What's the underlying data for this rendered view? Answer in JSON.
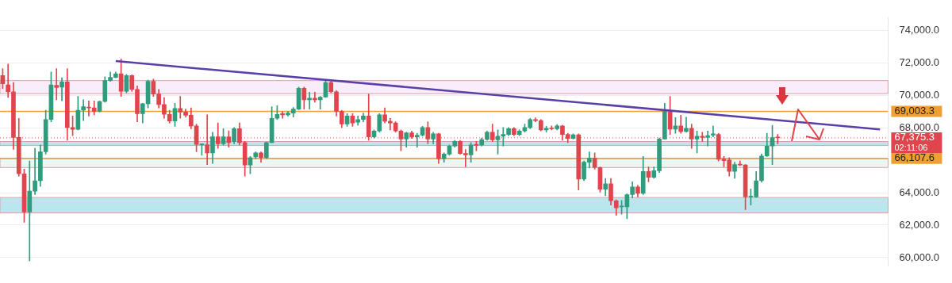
{
  "chart_data": {
    "type": "candlestick",
    "categories": [
      null,
      null,
      null,
      null,
      null,
      null,
      null,
      null,
      null,
      null,
      null,
      null,
      null,
      null,
      null,
      null,
      null,
      null,
      null,
      null,
      null,
      null,
      null,
      null,
      null,
      null,
      null,
      null,
      null,
      null,
      null,
      null,
      null,
      null,
      null,
      null,
      null,
      null,
      null,
      null,
      null,
      null,
      null,
      null,
      null,
      null,
      null,
      null,
      null,
      null,
      null,
      null,
      null,
      null,
      null,
      null,
      null,
      null,
      null,
      null,
      null,
      null,
      null,
      null,
      null,
      null,
      null,
      null,
      null,
      null,
      null,
      null,
      null,
      null,
      null,
      null,
      null,
      null,
      null,
      null,
      null,
      null,
      null,
      null,
      null,
      null,
      null,
      null,
      null,
      null,
      null,
      null,
      null,
      null,
      null,
      null,
      null,
      null,
      null,
      null,
      null,
      null,
      null,
      null,
      null,
      null,
      null,
      null,
      null,
      null,
      null,
      null,
      null,
      null,
      null,
      null,
      null,
      null,
      null,
      null,
      null,
      null,
      null,
      null,
      null,
      null,
      null,
      null,
      null,
      null,
      null,
      null,
      null,
      null,
      null,
      null,
      null,
      null,
      null,
      null,
      null,
      null,
      null,
      null,
      null,
      null,
      null,
      null,
      null,
      null,
      null,
      null,
      null,
      null,
      null,
      null,
      null,
      null,
      null,
      null,
      null,
      null,
      null,
      null,
      null
    ],
    "ohlc": [
      [
        71210,
        71640,
        70400,
        70710
      ],
      [
        70640,
        71920,
        69860,
        70215
      ],
      [
        70215,
        70780,
        66660,
        67400
      ],
      [
        67400,
        68580,
        65000,
        65160
      ],
      [
        65160,
        65450,
        62175,
        62815
      ],
      [
        62815,
        65950,
        59800,
        64095
      ],
      [
        64095,
        66730,
        63880,
        64735
      ],
      [
        64735,
        66940,
        64380,
        66515
      ],
      [
        66515,
        69080,
        66370,
        68505
      ],
      [
        68505,
        71425,
        68365,
        70640
      ],
      [
        70610,
        71640,
        69720,
        70470
      ],
      [
        70500,
        71070,
        69650,
        70825
      ],
      [
        70825,
        71640,
        67225,
        68010
      ],
      [
        68010,
        68720,
        67510,
        67895
      ],
      [
        67895,
        69930,
        67865,
        69080
      ],
      [
        69080,
        69720,
        68435,
        69290
      ],
      [
        69275,
        69645,
        68720,
        69220
      ],
      [
        69220,
        69645,
        68790,
        69005
      ],
      [
        69005,
        69645,
        68965,
        69615
      ],
      [
        69615,
        71140,
        69575,
        70900
      ],
      [
        70900,
        71425,
        70855,
        71100
      ],
      [
        71100,
        71425,
        71070,
        71325
      ],
      [
        71325,
        72235,
        69930,
        70245
      ],
      [
        70245,
        71280,
        70145,
        71210
      ],
      [
        71210,
        71255,
        70245,
        70360
      ],
      [
        70360,
        70570,
        68365,
        68865
      ],
      [
        68865,
        69505,
        68295,
        69475
      ],
      [
        69475,
        70925,
        69220,
        70855
      ],
      [
        70855,
        70995,
        69930,
        70070
      ],
      [
        70070,
        70355,
        69220,
        69430
      ],
      [
        69430,
        69860,
        68580,
        68820
      ],
      [
        68820,
        69075,
        68295,
        68410
      ],
      [
        68410,
        69505,
        68080,
        69190
      ],
      [
        69190,
        69930,
        68580,
        68960
      ],
      [
        68960,
        69145,
        68650,
        68765
      ],
      [
        68765,
        69220,
        67940,
        68110
      ],
      [
        68110,
        68220,
        66515,
        66970
      ],
      [
        66945,
        67015,
        66300,
        66970
      ],
      [
        66945,
        68790,
        65730,
        66445
      ],
      [
        66445,
        67725,
        65805,
        67440
      ],
      [
        67440,
        68295,
        66730,
        67010
      ],
      [
        67010,
        67935,
        66940,
        67440
      ],
      [
        67440,
        67800,
        66800,
        67085
      ],
      [
        67155,
        68010,
        67010,
        67940
      ],
      [
        67940,
        68295,
        66940,
        67085
      ],
      [
        67085,
        67155,
        65020,
        65705
      ],
      [
        65705,
        66230,
        65165,
        66160
      ],
      [
        66200,
        66515,
        66090,
        66445
      ],
      [
        66445,
        66515,
        65875,
        66160
      ],
      [
        66160,
        67115,
        66090,
        67085
      ],
      [
        67085,
        69290,
        67085,
        68580
      ],
      [
        68580,
        69360,
        68505,
        68820
      ],
      [
        68865,
        69005,
        68580,
        68790
      ],
      [
        68790,
        69005,
        68720,
        68905
      ],
      [
        68905,
        69245,
        68650,
        69145
      ],
      [
        69145,
        70500,
        69105,
        70430
      ],
      [
        70430,
        70500,
        69145,
        69715
      ],
      [
        69715,
        70185,
        69145,
        69815
      ],
      [
        69815,
        70185,
        69575,
        69715
      ],
      [
        69715,
        69930,
        69145,
        69885
      ],
      [
        69885,
        70925,
        69860,
        70785
      ],
      [
        70785,
        70855,
        70145,
        70215
      ],
      [
        70215,
        70285,
        68720,
        69005
      ],
      [
        69005,
        69075,
        68010,
        68225
      ],
      [
        68225,
        68865,
        68080,
        68720
      ],
      [
        68720,
        68865,
        68080,
        68295
      ],
      [
        68335,
        68720,
        68150,
        68505
      ],
      [
        68505,
        68905,
        68365,
        68720
      ],
      [
        68720,
        70070,
        67225,
        67440
      ],
      [
        67440,
        67865,
        67370,
        67795
      ],
      [
        67795,
        68865,
        67725,
        68790
      ],
      [
        68790,
        69220,
        68295,
        68395
      ],
      [
        68395,
        68580,
        67865,
        68295
      ],
      [
        68295,
        68365,
        67725,
        67795
      ],
      [
        67795,
        67865,
        66585,
        67295
      ],
      [
        67295,
        67725,
        66800,
        67680
      ],
      [
        67680,
        67795,
        67340,
        67440
      ],
      [
        67440,
        67655,
        66800,
        67540
      ],
      [
        67540,
        68080,
        67480,
        68010
      ],
      [
        68010,
        68365,
        67010,
        67295
      ],
      [
        67295,
        67725,
        67010,
        67625
      ],
      [
        67625,
        67655,
        65805,
        66090
      ],
      [
        66090,
        66445,
        65875,
        66375
      ],
      [
        66375,
        66940,
        66300,
        66870
      ],
      [
        66870,
        67225,
        66800,
        67155
      ],
      [
        67155,
        67225,
        66375,
        66415
      ],
      [
        66415,
        66660,
        65590,
        66330
      ],
      [
        66330,
        67085,
        65875,
        66940
      ],
      [
        66970,
        67155,
        66585,
        66915
      ],
      [
        66940,
        67370,
        66870,
        67270
      ],
      [
        67270,
        67795,
        67225,
        67725
      ],
      [
        67725,
        68220,
        67155,
        67255
      ],
      [
        67255,
        67865,
        66375,
        67480
      ],
      [
        67480,
        68010,
        66870,
        67580
      ],
      [
        67580,
        68010,
        67510,
        67940
      ],
      [
        67940,
        68010,
        67510,
        67580
      ],
      [
        67580,
        67865,
        67510,
        67795
      ],
      [
        67795,
        68220,
        67725,
        68010
      ],
      [
        68010,
        68580,
        67940,
        68505
      ],
      [
        68505,
        68605,
        68365,
        68435
      ],
      [
        68435,
        68505,
        67795,
        67865
      ],
      [
        67865,
        68080,
        67725,
        67965
      ],
      [
        67965,
        68110,
        67865,
        67940
      ],
      [
        67940,
        68195,
        67865,
        68110
      ],
      [
        68110,
        68150,
        67225,
        67580
      ],
      [
        67580,
        67655,
        67085,
        67340
      ],
      [
        67340,
        67625,
        67295,
        67555
      ],
      [
        67555,
        67625,
        64165,
        64835
      ],
      [
        64835,
        65945,
        64735,
        65875
      ],
      [
        65875,
        66515,
        65520,
        66115
      ],
      [
        66115,
        66445,
        65450,
        65550
      ],
      [
        65550,
        65590,
        64025,
        64210
      ],
      [
        64210,
        64880,
        63810,
        64550
      ],
      [
        64550,
        64880,
        63240,
        63500
      ],
      [
        63500,
        63555,
        62600,
        63070
      ],
      [
        63130,
        63525,
        62670,
        63170
      ],
      [
        63130,
        63925,
        62390,
        63880
      ],
      [
        63880,
        64665,
        63670,
        64350
      ],
      [
        64350,
        64450,
        63740,
        63955
      ],
      [
        63955,
        66230,
        63880,
        65305
      ],
      [
        65305,
        65590,
        64665,
        64950
      ],
      [
        64950,
        65590,
        64880,
        65350
      ],
      [
        65350,
        67370,
        65235,
        67300
      ],
      [
        67300,
        69505,
        67300,
        69005
      ],
      [
        68965,
        69930,
        67580,
        67910
      ],
      [
        67910,
        68620,
        67655,
        68110
      ],
      [
        68110,
        68765,
        67655,
        67765
      ],
      [
        67765,
        68650,
        67725,
        67965
      ],
      [
        67965,
        68225,
        66730,
        67300
      ],
      [
        67300,
        67795,
        66445,
        67480
      ],
      [
        67480,
        67725,
        67155,
        67395
      ],
      [
        67395,
        67795,
        66870,
        67510
      ],
      [
        67540,
        68110,
        67440,
        67625
      ],
      [
        67580,
        67655,
        65945,
        66060
      ],
      [
        66060,
        66230,
        65590,
        65975
      ],
      [
        66015,
        66160,
        65020,
        65305
      ],
      [
        65305,
        65875,
        64880,
        65735
      ],
      [
        65760,
        65945,
        65660,
        65705
      ],
      [
        65705,
        65735,
        62960,
        63740
      ],
      [
        63740,
        64235,
        63240,
        63780
      ],
      [
        63740,
        65305,
        63700,
        64735
      ],
      [
        64735,
        66375,
        64635,
        66260
      ],
      [
        66260,
        67655,
        66230,
        66870
      ],
      [
        66870,
        68150,
        65730,
        67395
      ],
      [
        67395,
        67580,
        67010,
        67375
      ],
      null,
      null,
      null,
      null,
      null,
      null,
      null,
      null,
      null,
      null,
      null,
      null,
      null,
      null,
      null,
      null,
      null,
      null,
      null,
      null
    ],
    "series": [
      {
        "type": "line",
        "color": "#5b3fa8",
        "values": [
          null,
          null,
          null,
          null,
          null,
          null,
          null,
          null,
          null,
          null,
          null,
          null,
          null,
          null,
          null,
          null,
          null,
          null,
          null,
          null,
          null,
          72100,
          null,
          null,
          null,
          null,
          null,
          null,
          null,
          null,
          null,
          null,
          null,
          null,
          null,
          null,
          null,
          null,
          null,
          null,
          null,
          null,
          null,
          null,
          null,
          null,
          null,
          null,
          null,
          null,
          null,
          null,
          null,
          null,
          null,
          null,
          null,
          null,
          null,
          null,
          null,
          null,
          null,
          null,
          null,
          null,
          null,
          null,
          null,
          null,
          null,
          null,
          null,
          null,
          null,
          null,
          null,
          null,
          null,
          null,
          null,
          null,
          null,
          null,
          null,
          null,
          null,
          null,
          null,
          null,
          null,
          null,
          null,
          null,
          null,
          null,
          null,
          null,
          null,
          null,
          null,
          null,
          null,
          null,
          null,
          null,
          null,
          null,
          null,
          null,
          null,
          null,
          null,
          null,
          null,
          null,
          null,
          null,
          null,
          null,
          null,
          null,
          null,
          null,
          null,
          null,
          null,
          null,
          null,
          null,
          null,
          null,
          null,
          null,
          null,
          null,
          null,
          null,
          null,
          null,
          null,
          null,
          null,
          null,
          null,
          null,
          null,
          null,
          null,
          null,
          null,
          null,
          null,
          null,
          null,
          null,
          null,
          null,
          null,
          null,
          null,
          null,
          null,
          67900,
          null
        ]
      }
    ],
    "ylim": [
      59500,
      74800
    ],
    "yticks": [
      {
        "value": 60000,
        "label": "60,000.0"
      },
      {
        "value": 62000,
        "label": "62,000.0"
      },
      {
        "value": 64000,
        "label": "64,000.0"
      },
      {
        "value": 68000,
        "label": "68,000.0"
      },
      {
        "value": 70000,
        "label": "70,000.0"
      },
      {
        "value": 72000,
        "label": "72,000.0"
      },
      {
        "value": 74000,
        "label": "74,000.0"
      }
    ],
    "ref_lines": [
      {
        "axis": "y",
        "value": 69003.3,
        "label": "69,003.3",
        "color": "#f0a030",
        "line_style": "solid"
      },
      {
        "axis": "y",
        "value": 66107.6,
        "label": "66,107.6",
        "color": "#f0a030",
        "line_style": "solid"
      },
      {
        "axis": "y",
        "value": 67375.3,
        "label": "67,375.3",
        "color": "#e0444d",
        "line_style": "dotted"
      }
    ],
    "bands": [
      {
        "axis": "y",
        "from": 62750,
        "to": 63700,
        "color": "#9fdbe6"
      },
      {
        "axis": "y",
        "from": 66900,
        "to": 67150,
        "color": "#9fdbe6"
      },
      {
        "axis": "y",
        "from": 65550,
        "to": 66100,
        "color": "#e3f4ee"
      },
      {
        "axis": "y",
        "from": 70100,
        "to": 70900,
        "color": "#f6e6f6"
      }
    ],
    "annotations": [
      "02:11:06"
    ],
    "grid": "y",
    "tick_labels": "y",
    "legend": false
  }
}
